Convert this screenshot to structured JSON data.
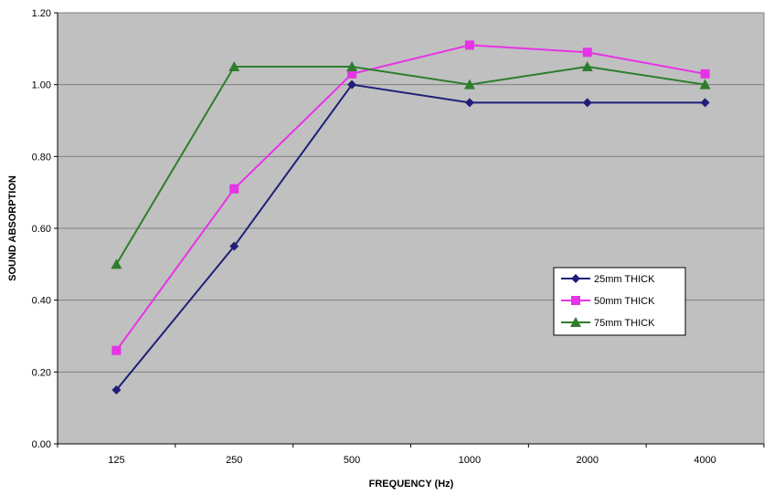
{
  "chart_data": {
    "type": "line",
    "title": "",
    "xlabel": "FREQUENCY (Hz)",
    "ylabel": "SOUND ABSORPTION",
    "categories": [
      "125",
      "250",
      "500",
      "1000",
      "2000",
      "4000"
    ],
    "ylim": [
      0,
      1.2
    ],
    "yticks": [
      "0.00",
      "0.20",
      "0.40",
      "0.60",
      "0.80",
      "1.00",
      "1.20"
    ],
    "grid": true,
    "legend_position": "right",
    "plot_background": "#c0c0c0",
    "series": [
      {
        "name": "25mm THICK",
        "color": "#1f1f7a",
        "marker": "diamond",
        "values": [
          0.15,
          0.55,
          1.0,
          0.95,
          0.95,
          0.95
        ]
      },
      {
        "name": "50mm THICK",
        "color": "#e633e6",
        "marker": "square",
        "values": [
          0.26,
          0.71,
          1.03,
          1.11,
          1.09,
          1.03
        ]
      },
      {
        "name": "75mm THICK",
        "color": "#2e7d2e",
        "marker": "triangle",
        "values": [
          0.5,
          1.05,
          1.05,
          1.0,
          1.05,
          1.0
        ]
      }
    ]
  }
}
